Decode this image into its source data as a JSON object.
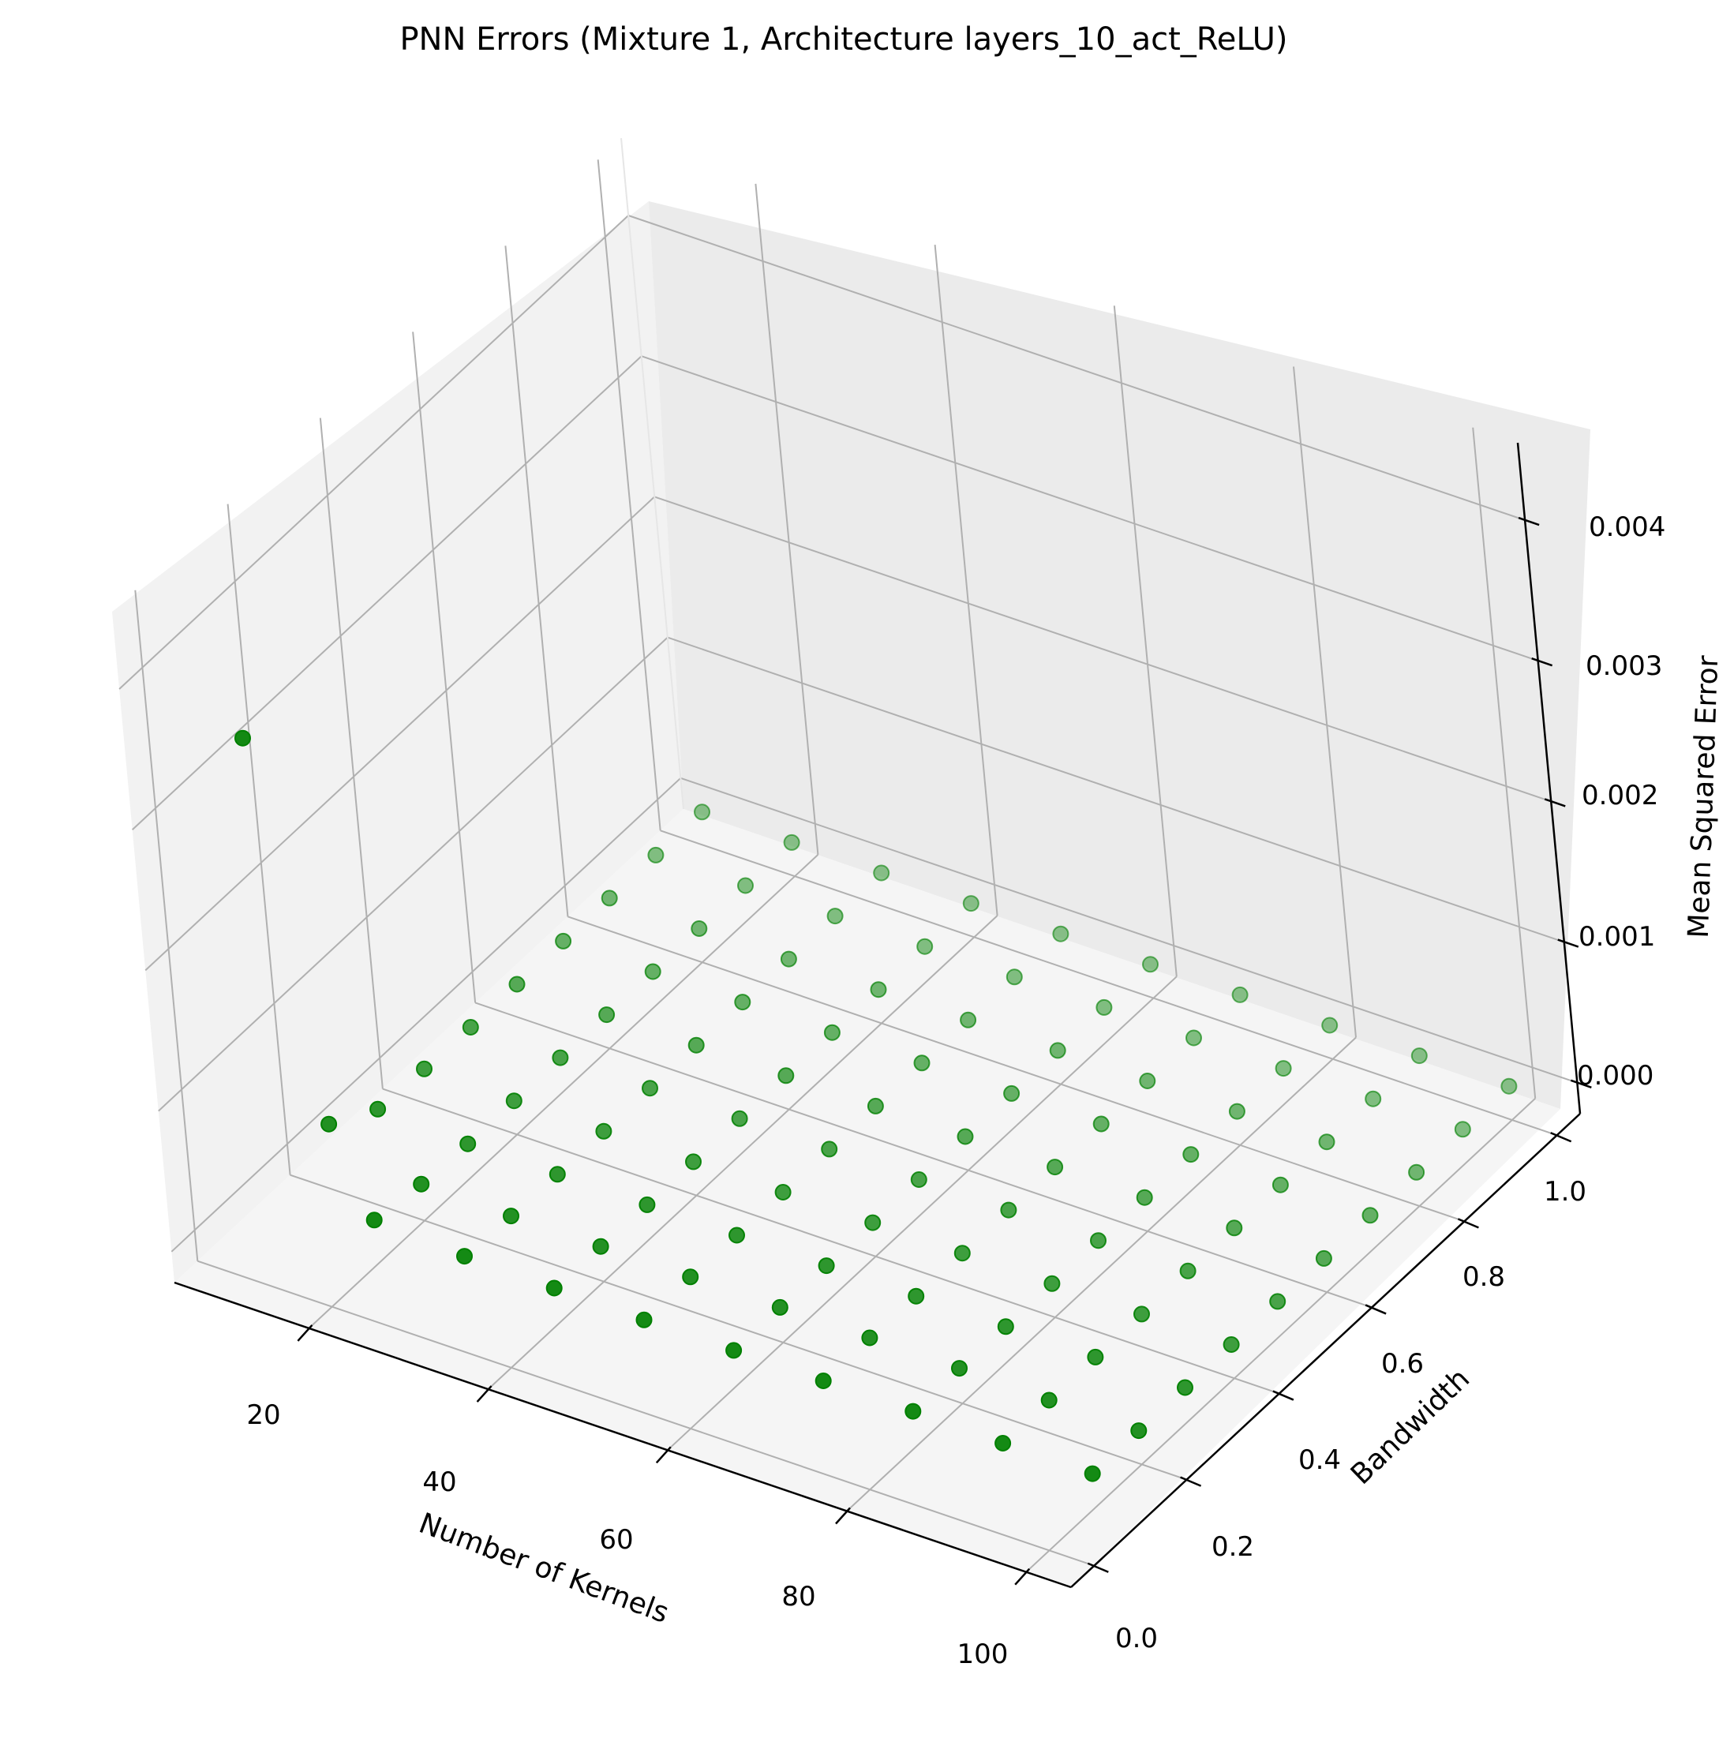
{
  "chart_data": {
    "type": "scatter",
    "projection": "3d",
    "title": "PNN Errors (Mixture 1, Architecture layers_10_act_ReLU)",
    "xlabel": "Number of Kernels",
    "ylabel": "Bandwidth",
    "zlabel": "Mean Squared Error",
    "x_ticks": [
      "20",
      "40",
      "60",
      "80",
      "100"
    ],
    "y_ticks": [
      "0.0",
      "0.2",
      "0.4",
      "0.6",
      "0.8",
      "1.0"
    ],
    "z_ticks": [
      "0.000",
      "0.001",
      "0.002",
      "0.003",
      "0.004"
    ],
    "grid": true,
    "marker_color": "#008000",
    "pane_colors": {
      "left": "#f2f2f2",
      "back": "#ebebeb",
      "floor": "#f5f5f5"
    },
    "series": [
      {
        "points": [
          [
            10,
            0.1,
            0.0033
          ],
          [
            10,
            0.2,
            0.00025
          ],
          [
            10,
            0.3,
            5e-05
          ],
          [
            10,
            0.4,
            3e-05
          ],
          [
            10,
            0.5,
            2e-05
          ],
          [
            10,
            0.6,
            2e-05
          ],
          [
            10,
            0.7,
            2e-05
          ],
          [
            10,
            0.8,
            2e-05
          ],
          [
            10,
            0.9,
            2e-05
          ],
          [
            10,
            1.0,
            2e-05
          ],
          [
            20,
            0.1,
            9e-05
          ],
          [
            20,
            0.2,
            4e-05
          ],
          [
            20,
            0.3,
            2e-05
          ],
          [
            20,
            0.4,
            2e-05
          ],
          [
            20,
            0.5,
            2e-05
          ],
          [
            20,
            0.6,
            2e-05
          ],
          [
            20,
            0.7,
            2e-05
          ],
          [
            20,
            0.8,
            2e-05
          ],
          [
            20,
            0.9,
            2e-05
          ],
          [
            20,
            1.0,
            2e-05
          ],
          [
            30,
            0.1,
            5e-05
          ],
          [
            30,
            0.2,
            3e-05
          ],
          [
            30,
            0.3,
            2e-05
          ],
          [
            30,
            0.4,
            2e-05
          ],
          [
            30,
            0.5,
            2e-05
          ],
          [
            30,
            0.6,
            2e-05
          ],
          [
            30,
            0.7,
            2e-05
          ],
          [
            30,
            0.8,
            2e-05
          ],
          [
            30,
            0.9,
            2e-05
          ],
          [
            30,
            1.0,
            2e-05
          ],
          [
            40,
            0.1,
            4e-05
          ],
          [
            40,
            0.2,
            3e-05
          ],
          [
            40,
            0.3,
            2e-05
          ],
          [
            40,
            0.4,
            2e-05
          ],
          [
            40,
            0.5,
            2e-05
          ],
          [
            40,
            0.6,
            2e-05
          ],
          [
            40,
            0.7,
            2e-05
          ],
          [
            40,
            0.8,
            2e-05
          ],
          [
            40,
            0.9,
            2e-05
          ],
          [
            40,
            1.0,
            2e-05
          ],
          [
            50,
            0.1,
            3e-05
          ],
          [
            50,
            0.2,
            3e-05
          ],
          [
            50,
            0.3,
            2e-05
          ],
          [
            50,
            0.4,
            2e-05
          ],
          [
            50,
            0.5,
            2e-05
          ],
          [
            50,
            0.6,
            2e-05
          ],
          [
            50,
            0.7,
            2e-05
          ],
          [
            50,
            0.8,
            2e-05
          ],
          [
            50,
            0.9,
            2e-05
          ],
          [
            50,
            1.0,
            2e-05
          ],
          [
            60,
            0.1,
            3e-05
          ],
          [
            60,
            0.2,
            3e-05
          ],
          [
            60,
            0.3,
            2e-05
          ],
          [
            60,
            0.4,
            2e-05
          ],
          [
            60,
            0.5,
            2e-05
          ],
          [
            60,
            0.6,
            2e-05
          ],
          [
            60,
            0.7,
            2e-05
          ],
          [
            60,
            0.8,
            2e-05
          ],
          [
            60,
            0.9,
            2e-05
          ],
          [
            60,
            1.0,
            2e-05
          ],
          [
            70,
            0.1,
            3e-05
          ],
          [
            70,
            0.2,
            3e-05
          ],
          [
            70,
            0.3,
            2e-05
          ],
          [
            70,
            0.4,
            2e-05
          ],
          [
            70,
            0.5,
            2e-05
          ],
          [
            70,
            0.6,
            2e-05
          ],
          [
            70,
            0.7,
            2e-05
          ],
          [
            70,
            0.8,
            2e-05
          ],
          [
            70,
            0.9,
            2e-05
          ],
          [
            70,
            1.0,
            2e-05
          ],
          [
            80,
            0.1,
            3e-05
          ],
          [
            80,
            0.2,
            3e-05
          ],
          [
            80,
            0.3,
            2e-05
          ],
          [
            80,
            0.4,
            2e-05
          ],
          [
            80,
            0.5,
            2e-05
          ],
          [
            80,
            0.6,
            2e-05
          ],
          [
            80,
            0.7,
            2e-05
          ],
          [
            80,
            0.8,
            2e-05
          ],
          [
            80,
            0.9,
            2e-05
          ],
          [
            80,
            1.0,
            2e-05
          ],
          [
            90,
            0.1,
            2e-05
          ],
          [
            90,
            0.2,
            2e-05
          ],
          [
            90,
            0.3,
            2e-05
          ],
          [
            90,
            0.4,
            2e-05
          ],
          [
            90,
            0.5,
            2e-05
          ],
          [
            90,
            0.6,
            2e-05
          ],
          [
            90,
            0.7,
            2e-05
          ],
          [
            90,
            0.8,
            2e-05
          ],
          [
            90,
            0.9,
            2e-05
          ],
          [
            90,
            1.0,
            2e-05
          ],
          [
            100,
            0.1,
            2e-05
          ],
          [
            100,
            0.2,
            2e-05
          ],
          [
            100,
            0.3,
            2e-05
          ],
          [
            100,
            0.4,
            2e-05
          ],
          [
            100,
            0.5,
            2e-05
          ],
          [
            100,
            0.6,
            2e-05
          ],
          [
            100,
            0.7,
            2e-05
          ],
          [
            100,
            0.8,
            2e-05
          ],
          [
            100,
            0.9,
            2e-05
          ],
          [
            100,
            1.0,
            2e-05
          ]
        ]
      }
    ]
  }
}
